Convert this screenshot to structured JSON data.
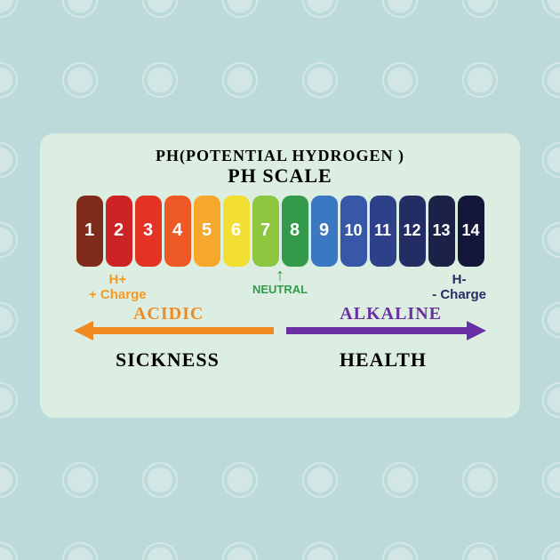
{
  "background_color": "#bcdada",
  "panel_color": "#dceee2",
  "title": {
    "line1": "PH(POTENTIAL HYDROGEN )",
    "line2": "PH SCALE",
    "line1_fontsize": 18,
    "line2_fontsize": 22,
    "color": "#000000"
  },
  "scale": {
    "values": [
      "1",
      "2",
      "3",
      "4",
      "5",
      "6",
      "7",
      "8",
      "9",
      "10",
      "11",
      "12",
      "13",
      "14"
    ],
    "colors": [
      "#7e2b1b",
      "#cc2325",
      "#e43225",
      "#ee5a26",
      "#f6a82a",
      "#f3de34",
      "#8ec63f",
      "#329a4a",
      "#3a79c2",
      "#3858a7",
      "#2d4088",
      "#242d63",
      "#1c2147",
      "#14173a"
    ],
    "chip_height": 80,
    "chip_width": 30,
    "chip_radius": 10,
    "value_color": "#ffffff",
    "value_fontsize": 20
  },
  "neutral": {
    "label": "NEUTRAL",
    "arrow": "↑",
    "color": "#329a4a",
    "fontsize": 13
  },
  "left_charge": {
    "line1": "H+",
    "line2": "+ Charge",
    "color": "#f59a23"
  },
  "right_charge": {
    "line1": "H-",
    "line2": "- Charge",
    "color": "#242d63"
  },
  "range": {
    "left": {
      "label": "ACIDIC",
      "color": "#f08a24"
    },
    "right": {
      "label": "ALKALINE",
      "color": "#6a2fa3"
    }
  },
  "arrows": {
    "left_color": "#ef8a23",
    "right_color": "#6a2fa3",
    "shaft_height": 8,
    "head_size": 22
  },
  "outcome": {
    "left": "SICKNESS",
    "right": "HEALTH",
    "color": "#000000",
    "fontsize": 22
  }
}
